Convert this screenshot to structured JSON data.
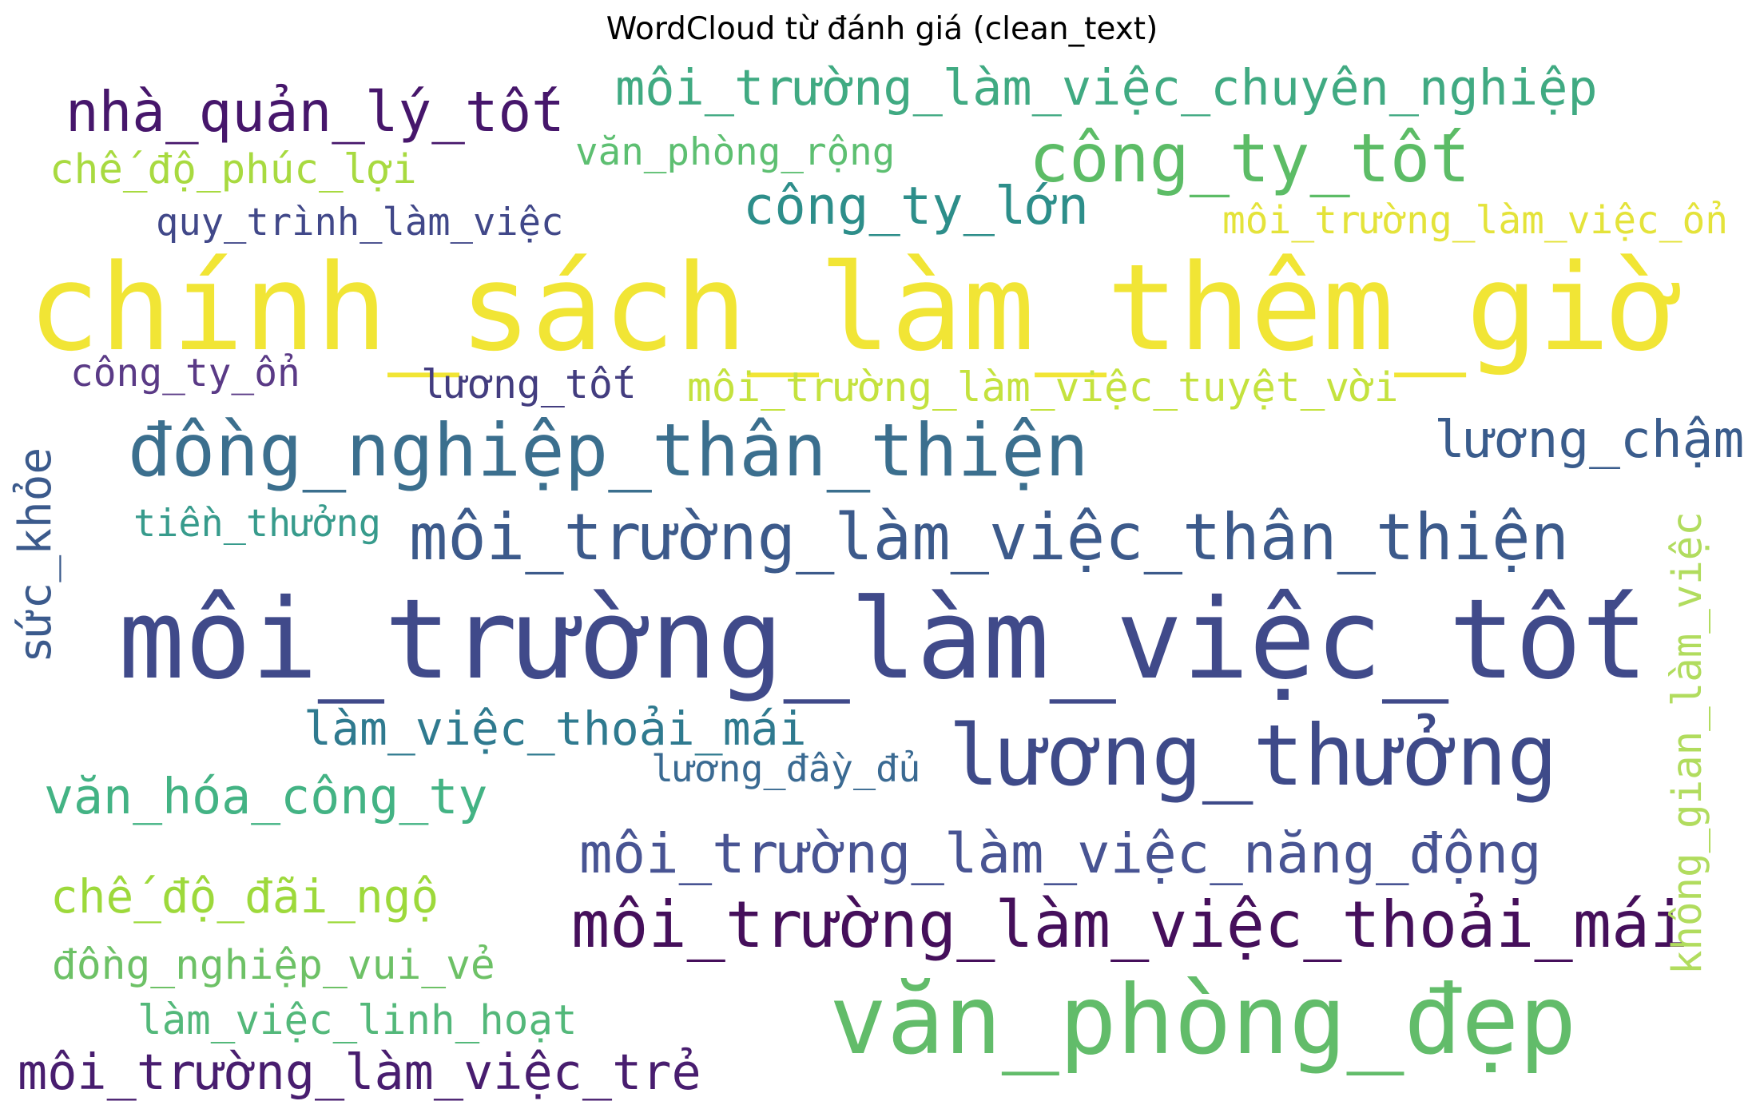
{
  "title": "WordCloud từ đánh giá (clean_text)",
  "words": [
    {
      "text": "chính_sách_làm_thêm_giờ",
      "color": "#f1e535",
      "rotated": false
    },
    {
      "text": "môi_trường_làm_việc_tốt",
      "color": "#404a8a",
      "rotated": false
    },
    {
      "text": "văn_phòng_đẹp",
      "color": "#62bc6a",
      "rotated": false
    },
    {
      "text": "lương_thưởng",
      "color": "#3e4a89",
      "rotated": false
    },
    {
      "text": "đồng_nghiệp_thân_thiện",
      "color": "#3b6f8e",
      "rotated": false
    },
    {
      "text": "môi_trường_làm_việc_thân_thiện",
      "color": "#3c5a8b",
      "rotated": false
    },
    {
      "text": "môi_trường_làm_việc_thoải_mái",
      "color": "#450f5b",
      "rotated": false
    },
    {
      "text": "công_ty_tốt",
      "color": "#5cbc66",
      "rotated": false
    },
    {
      "text": "nhà_quản_lý_tốt",
      "color": "#46166b",
      "rotated": false
    },
    {
      "text": "môi_trường_làm_việc_chuyên_nghiệp",
      "color": "#40aa82",
      "rotated": false
    },
    {
      "text": "môi_trường_làm_việc_năng_động",
      "color": "#485493",
      "rotated": false
    },
    {
      "text": "văn_hóa_công_ty",
      "color": "#43b384",
      "rotated": false
    },
    {
      "text": "công_ty_lớn",
      "color": "#2d8e8a",
      "rotated": false
    },
    {
      "text": "môi_trường_làm_việc_trẻ",
      "color": "#481d6f",
      "rotated": false
    },
    {
      "text": "lương_chậm",
      "color": "#3a5c8c",
      "rotated": false
    },
    {
      "text": "chế_độ_đãi_ngộ",
      "color": "#9dd93b",
      "rotated": false
    },
    {
      "text": "làm_việc_thoải_mái",
      "color": "#2f7a8f",
      "rotated": false
    },
    {
      "text": "quy_trình_làm_việc",
      "color": "#414889",
      "rotated": false
    },
    {
      "text": "chế_độ_phúc_lợi",
      "color": "#a8da40",
      "rotated": false
    },
    {
      "text": "đồng_nghiệp_vui_vẻ",
      "color": "#6dc166",
      "rotated": false
    },
    {
      "text": "làm_việc_linh_hoạt",
      "color": "#53b87a",
      "rotated": false
    },
    {
      "text": "lương_tốt",
      "color": "#433d7f",
      "rotated": false
    },
    {
      "text": "môi_trường_làm_việc_tuyệt_vời",
      "color": "#c4e23e",
      "rotated": false
    },
    {
      "text": "môi_trường_làm_việc_ổn",
      "color": "#e4e33a",
      "rotated": false
    },
    {
      "text": "công_ty_ổn",
      "color": "#5a3a86",
      "rotated": false
    },
    {
      "text": "văn_phòng_rộng",
      "color": "#5dbf71",
      "rotated": false
    },
    {
      "text": "lương_đầy_đủ",
      "color": "#3a6a92",
      "rotated": false
    },
    {
      "text": "tiền_thưởng",
      "color": "#379b8c",
      "rotated": false
    },
    {
      "text": "sức_khỏe",
      "color": "#3b5a8c",
      "rotated": true
    },
    {
      "text": "không_gian_làm_việc",
      "color": "#b1dc5e",
      "rotated": true
    }
  ]
}
